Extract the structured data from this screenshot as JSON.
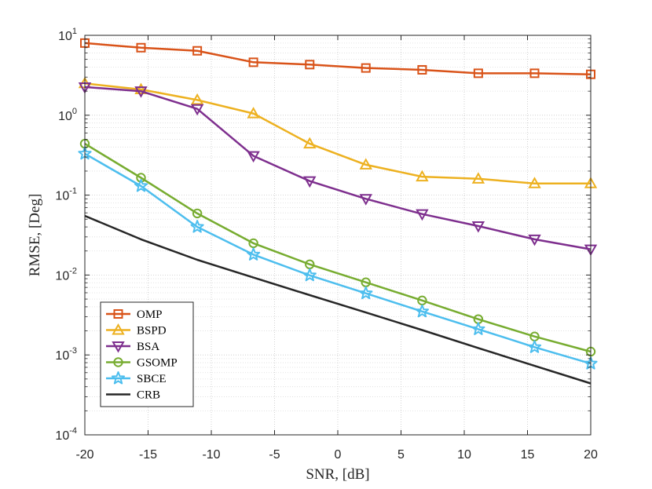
{
  "chart_data": {
    "type": "line",
    "xlabel": "SNR, [dB]",
    "ylabel": "RMSE, [Deg]",
    "xlim": [
      -20,
      20
    ],
    "ylim": [
      0.0001,
      10
    ],
    "yscale": "log",
    "grid": true,
    "minor_grid": true,
    "legend_position": "bottom-left",
    "x_ticks": [
      -20,
      -15,
      -10,
      -5,
      0,
      5,
      10,
      15,
      20
    ],
    "x_tick_labels": [
      "-20",
      "-15",
      "-10",
      "-5",
      "0",
      "5",
      "10",
      "15",
      "20"
    ],
    "y_ticks": [
      {
        "value": 10,
        "base": "10",
        "exp": "1"
      },
      {
        "value": 1,
        "base": "10",
        "exp": "0"
      },
      {
        "value": 0.1,
        "base": "10",
        "exp": "-1"
      },
      {
        "value": 0.01,
        "base": "10",
        "exp": "-2"
      },
      {
        "value": 0.001,
        "base": "10",
        "exp": "-3"
      },
      {
        "value": 0.0001,
        "base": "10",
        "exp": "-4"
      }
    ],
    "x": [
      -20,
      -15.56,
      -11.11,
      -6.67,
      -2.22,
      2.22,
      6.67,
      11.11,
      15.56,
      20
    ],
    "series": [
      {
        "name": "OMP",
        "color": "#D95319",
        "marker": "square",
        "values": [
          8.0,
          7.0,
          6.4,
          4.6,
          4.3,
          3.9,
          3.7,
          3.35,
          3.35,
          3.25
        ]
      },
      {
        "name": "BSPD",
        "color": "#EDB120",
        "marker": "triangle-up",
        "values": [
          2.5,
          2.1,
          1.55,
          1.05,
          0.44,
          0.24,
          0.17,
          0.16,
          0.14,
          0.14
        ]
      },
      {
        "name": "BSA",
        "color": "#7E2F8E",
        "marker": "triangle-down",
        "values": [
          2.25,
          2.0,
          1.2,
          0.31,
          0.15,
          0.09,
          0.058,
          0.041,
          0.028,
          0.021
        ]
      },
      {
        "name": "GSOMP",
        "color": "#77AC30",
        "marker": "circle",
        "values": [
          0.44,
          0.165,
          0.059,
          0.025,
          0.0136,
          0.0081,
          0.0048,
          0.0028,
          0.0017,
          0.0011
        ]
      },
      {
        "name": "SBCE",
        "color": "#4DBEEE",
        "marker": "star",
        "values": [
          0.33,
          0.13,
          0.04,
          0.018,
          0.0099,
          0.0059,
          0.0035,
          0.0021,
          0.00125,
          0.00078
        ]
      },
      {
        "name": "CRB",
        "color": "#262626",
        "marker": "none",
        "values": [
          0.055,
          0.028,
          0.0155,
          0.0093,
          0.0056,
          0.0034,
          0.00205,
          0.00122,
          0.00073,
          0.00044
        ]
      }
    ]
  }
}
